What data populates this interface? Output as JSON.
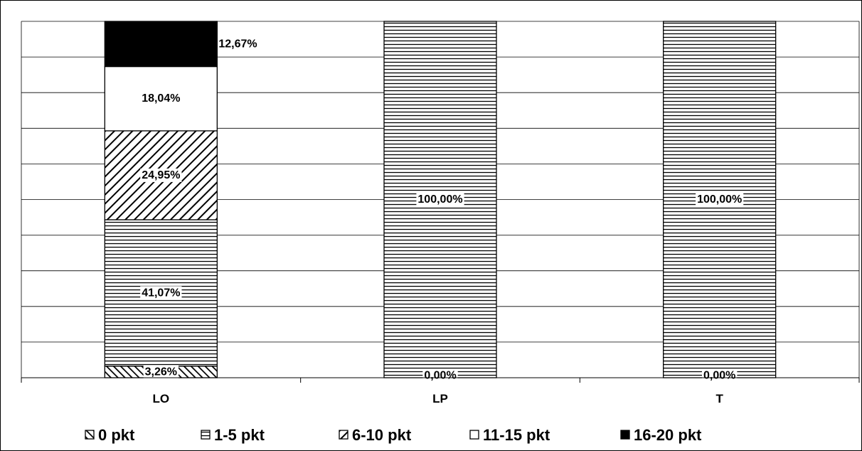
{
  "chart_data": {
    "type": "bar",
    "stacked": true,
    "normalized_percent": true,
    "categories": [
      "LO",
      "LP",
      "T"
    ],
    "series": [
      {
        "name": "0 pkt",
        "values": [
          3.26,
          0.0,
          0.0
        ],
        "labels": [
          "3,26%",
          "0,00%",
          "0,00%"
        ],
        "pattern": "dense-diagonal-back"
      },
      {
        "name": "1-5 pkt",
        "values": [
          41.07,
          100.0,
          100.0
        ],
        "labels": [
          "41,07%",
          "100,00%",
          "100,00%"
        ],
        "pattern": "horizontal-lines"
      },
      {
        "name": "6-10 pkt",
        "values": [
          24.95,
          0,
          0
        ],
        "labels": [
          "24,95%",
          "",
          ""
        ],
        "pattern": "diagonal-forward"
      },
      {
        "name": "11-15 pkt",
        "values": [
          18.04,
          0,
          0
        ],
        "labels": [
          "18,04%",
          "",
          ""
        ],
        "pattern": "white"
      },
      {
        "name": "16-20 pkt",
        "values": [
          12.67,
          0,
          0
        ],
        "labels": [
          "12,67%",
          "",
          ""
        ],
        "pattern": "black"
      }
    ],
    "ylim": [
      0,
      100
    ],
    "grid": true,
    "legend_position": "bottom",
    "colors": {
      "frame": "#000000",
      "fill_black": "#000000",
      "fill_white": "#ffffff"
    }
  }
}
